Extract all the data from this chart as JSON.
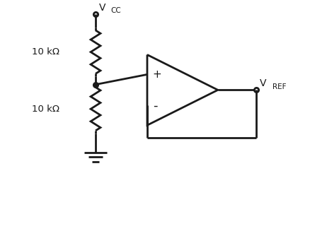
{
  "background_color": "#ffffff",
  "line_color": "#1a1a1a",
  "line_width": 2.0,
  "vcc_label": "V",
  "vcc_sub": "CC",
  "vref_label": "V",
  "vref_sub": "REF",
  "r1_label": "10 kΩ",
  "r2_label": "10 kΩ",
  "plus_label": "+",
  "minus_label": "-",
  "figsize": [
    4.39,
    3.27
  ],
  "dpi": 100,
  "xlim": [
    0,
    10
  ],
  "ylim": [
    0,
    8.5
  ]
}
